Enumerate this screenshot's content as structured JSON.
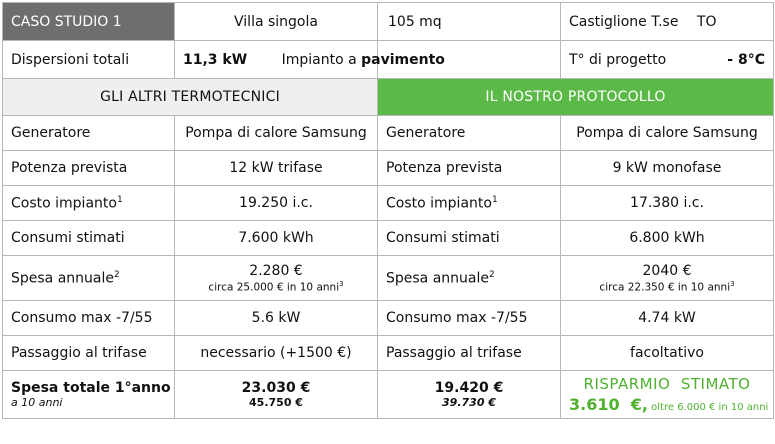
{
  "header": {
    "case_label": "CASO STUDIO 1",
    "building": "Villa singola",
    "area": "105 mq",
    "city": "Castiglione T.se",
    "province": "TO",
    "dispersion_label": "Dispersioni totali",
    "dispersion_value": "11,3 kW",
    "system_prefix": "Impianto a ",
    "system_type": "pavimento",
    "design_temp_label": "T° di progetto",
    "design_temp_value": "- 8°C"
  },
  "sections": {
    "others_title": "GLI ALTRI TERMOTECNICI",
    "ours_title": "IL NOSTRO PROTOCOLLO"
  },
  "rows": {
    "generator": {
      "label": "Generatore",
      "others": "Pompa di calore Samsung",
      "ours": "Pompa di calore Samsung"
    },
    "power": {
      "label": "Potenza prevista",
      "others": "12 kW trifase",
      "ours": "9 kW monofase"
    },
    "cost": {
      "label": "Costo impianto",
      "note": "1",
      "others": "19.250 i.c.",
      "ours": "17.380 i.c."
    },
    "consumption": {
      "label": "Consumi stimati",
      "others": "7.600 kWh",
      "ours": "6.800 kWh"
    },
    "annual": {
      "label": "Spesa annuale",
      "note": "2",
      "others": "2.280 €",
      "others_sub": "circa 25.000 € in 10 anni",
      "others_sub_note": "3",
      "ours": "2040 €",
      "ours_sub": "circa 22.350 € in 10 anni",
      "ours_sub_note": "3"
    },
    "max_consumption": {
      "label": "Consumo max -7/55",
      "others": "5.6 kW",
      "ours": "4.74 kW"
    },
    "three_phase": {
      "label": "Passaggio al trifase",
      "others": "necessario (+1500 €)",
      "ours": "facoltativo"
    },
    "total": {
      "label": "Spesa totale 1°anno",
      "sublabel": "a 10 anni",
      "others": "23.030 €",
      "others_sub": "45.750 €",
      "ours": "19.420 €",
      "ours_sub": "39.730 €",
      "savings_title": "RISPARMIO  STIMATO",
      "savings_value": "3.610  €,",
      "savings_note": " oltre 6.000 € in 10 anni"
    }
  },
  "colors": {
    "case_bg": "#6e6e6e",
    "protocol_bg": "#5bb947",
    "savings_text": "#4fb22f"
  }
}
